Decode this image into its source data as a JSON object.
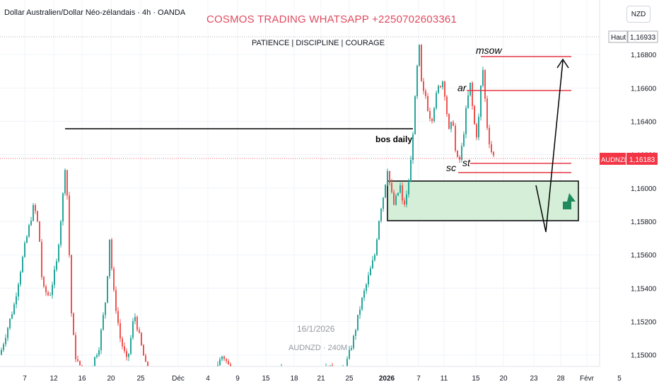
{
  "header": {
    "symbol_title": "Dollar Australien/Dollar Néo-zélandais · 4h · OANDA",
    "promo_title": "COSMOS TRADING WHATSAPP +2250702603361",
    "motto": "PATIENCE | DISCIPLINE | COURAGE",
    "currency": "NZD"
  },
  "watermark": {
    "date": "16/1/2026",
    "symbol": "AUDNZD · 240M"
  },
  "colors": {
    "bull": "#26a69a",
    "bear": "#ef5350",
    "zone_fill": "#d4eed7",
    "level_red": "#e53945",
    "price_badge": "#f23645",
    "high_badge_border": "#9598a1",
    "arrow": "#000000"
  },
  "chart_data": {
    "type": "candlestick",
    "symbol": "AUDNZD",
    "timeframe": "4h",
    "y_axis": {
      "ticks": [
        "1,16800",
        "1,16600",
        "1,16400",
        "1,16200",
        "1,16000",
        "1,15800",
        "1,15600",
        "1,15400",
        "1,15200",
        "1,15000"
      ],
      "ylim": [
        1.1488,
        1.17
      ]
    },
    "x_axis": {
      "ticks": [
        "7",
        "12",
        "16",
        "20",
        "25",
        "Déc",
        "4",
        "9",
        "15",
        "18",
        "21",
        "25",
        "2026",
        "7",
        "11",
        "15",
        "20",
        "23",
        "28",
        "Févr",
        "5"
      ]
    },
    "price_labels": {
      "current": {
        "label": "AUDNZD",
        "value": "1,16183"
      },
      "high": {
        "label": "Haut",
        "value": "1,16933"
      }
    },
    "price_path": [
      [
        0,
        1.15
      ],
      [
        10,
        1.1515
      ],
      [
        20,
        1.153
      ],
      [
        35,
        1.1565
      ],
      [
        48,
        1.159
      ],
      [
        55,
        1.1575
      ],
      [
        60,
        1.154
      ],
      [
        70,
        1.1535
      ],
      [
        80,
        1.1555
      ],
      [
        88,
        1.159
      ],
      [
        92,
        1.1613
      ],
      [
        96,
        1.159
      ],
      [
        100,
        1.153
      ],
      [
        106,
        1.15
      ],
      [
        115,
        1.149
      ],
      [
        125,
        1.1488
      ],
      [
        140,
        1.1505
      ],
      [
        150,
        1.1535
      ],
      [
        155,
        1.157
      ],
      [
        160,
        1.154
      ],
      [
        170,
        1.151
      ],
      [
        180,
        1.1495
      ],
      [
        190,
        1.1525
      ],
      [
        200,
        1.1505
      ],
      [
        208,
        1.149
      ],
      [
        215,
        1.1488
      ],
      [
        230,
        1.1489
      ],
      [
        300,
        1.1488
      ],
      [
        315,
        1.15
      ],
      [
        325,
        1.1492
      ],
      [
        340,
        1.1488
      ],
      [
        380,
        1.1488
      ],
      [
        400,
        1.1492
      ],
      [
        430,
        1.1488
      ],
      [
        465,
        1.1492
      ],
      [
        480,
        1.1488
      ],
      [
        490,
        1.1495
      ],
      [
        500,
        1.151
      ],
      [
        510,
        1.153
      ],
      [
        520,
        1.1545
      ],
      [
        530,
        1.156
      ],
      [
        537,
        1.1585
      ],
      [
        542,
        1.1595
      ],
      [
        548,
        1.1612
      ],
      [
        552,
        1.16
      ],
      [
        557,
        1.159
      ],
      [
        562,
        1.1596
      ],
      [
        566,
        1.1601
      ],
      [
        570,
        1.1588
      ],
      [
        575,
        1.1595
      ],
      [
        580,
        1.161
      ],
      [
        585,
        1.164
      ],
      [
        590,
        1.1672
      ],
      [
        594,
        1.1688
      ],
      [
        597,
        1.165
      ],
      [
        600,
        1.166
      ],
      [
        605,
        1.1648
      ],
      [
        610,
        1.164
      ],
      [
        615,
        1.1652
      ],
      [
        620,
        1.166
      ],
      [
        627,
        1.1665
      ],
      [
        632,
        1.1645
      ],
      [
        636,
        1.163
      ],
      [
        640,
        1.1645
      ],
      [
        644,
        1.1622
      ],
      [
        648,
        1.1615
      ],
      [
        651,
        1.1618
      ],
      [
        655,
        1.163
      ],
      [
        660,
        1.165
      ],
      [
        665,
        1.1662
      ],
      [
        670,
        1.164
      ],
      [
        674,
        1.1632
      ],
      [
        678,
        1.1645
      ],
      [
        682,
        1.1676
      ],
      [
        685,
        1.166
      ],
      [
        688,
        1.164
      ],
      [
        692,
        1.1628
      ],
      [
        696,
        1.162
      ],
      [
        700,
        1.1618
      ]
    ]
  },
  "annotations": {
    "bos_daily": "bos daily",
    "msow": "msow",
    "ar": "ar",
    "sc": "sc",
    "st": "st"
  }
}
